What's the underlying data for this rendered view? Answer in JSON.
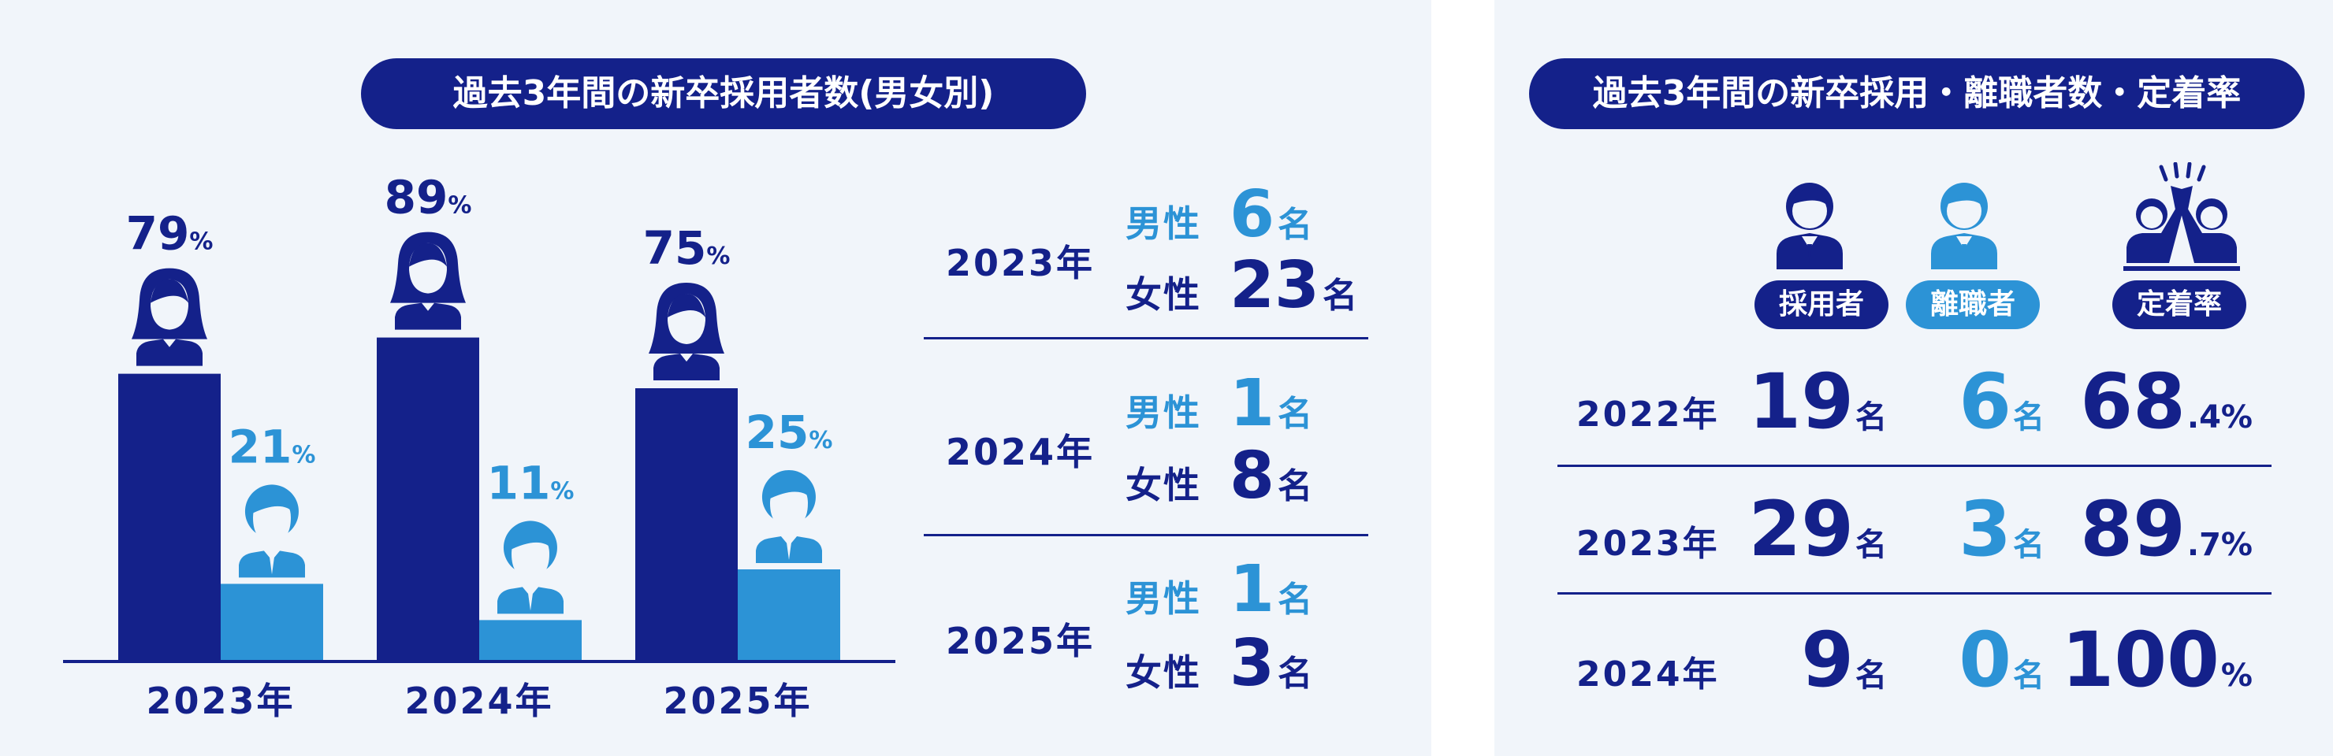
{
  "colors": {
    "dark": "#14218a",
    "light": "#2c93d6",
    "panel": "#f1f5fa"
  },
  "left": {
    "title": "過去3年間の新卒採用者数(男女別)",
    "table": {
      "unit": "名",
      "rows": [
        {
          "year": "2023年",
          "male_label": "男性",
          "male": "6",
          "female_label": "女性",
          "female": "23"
        },
        {
          "year": "2024年",
          "male_label": "男性",
          "male": "1",
          "female_label": "女性",
          "female": "8"
        },
        {
          "year": "2025年",
          "male_label": "男性",
          "male": "1",
          "female_label": "女性",
          "female": "3"
        }
      ]
    }
  },
  "right": {
    "title": "過去3年間の新卒採用・離職者数・定着率",
    "headers": {
      "hired": "採用者",
      "left": "離職者",
      "retention": "定着率"
    },
    "icons": {
      "hired": "businessman-icon",
      "left": "businessman-icon",
      "retention": "high-five-icon"
    },
    "rows": [
      {
        "year": "2022年",
        "hired": "19",
        "hired_unit": "名",
        "left": "6",
        "left_unit": "名",
        "retention": "68",
        "retention_unit": ".4%"
      },
      {
        "year": "2023年",
        "hired": "29",
        "hired_unit": "名",
        "left": "3",
        "left_unit": "名",
        "retention": "89",
        "retention_unit": ".7%"
      },
      {
        "year": "2024年",
        "hired": "9",
        "hired_unit": "名",
        "left": "0",
        "left_unit": "名",
        "retention": "100",
        "retention_unit": "%"
      }
    ]
  },
  "chart_data": {
    "type": "bar",
    "title": "過去3年間の新卒採用者数(男女別)",
    "categories": [
      "2023年",
      "2024年",
      "2025年"
    ],
    "series": [
      {
        "name": "女性",
        "values": [
          79,
          89,
          75
        ],
        "labels": [
          "79",
          "89",
          "75"
        ],
        "color": "#14218a",
        "icon": "woman-icon"
      },
      {
        "name": "男性",
        "values": [
          21,
          11,
          25
        ],
        "labels": [
          "21",
          "11",
          "25"
        ],
        "color": "#2c93d6",
        "icon": "man-icon"
      }
    ],
    "value_unit": "%",
    "ylim": [
      0,
      100
    ]
  }
}
